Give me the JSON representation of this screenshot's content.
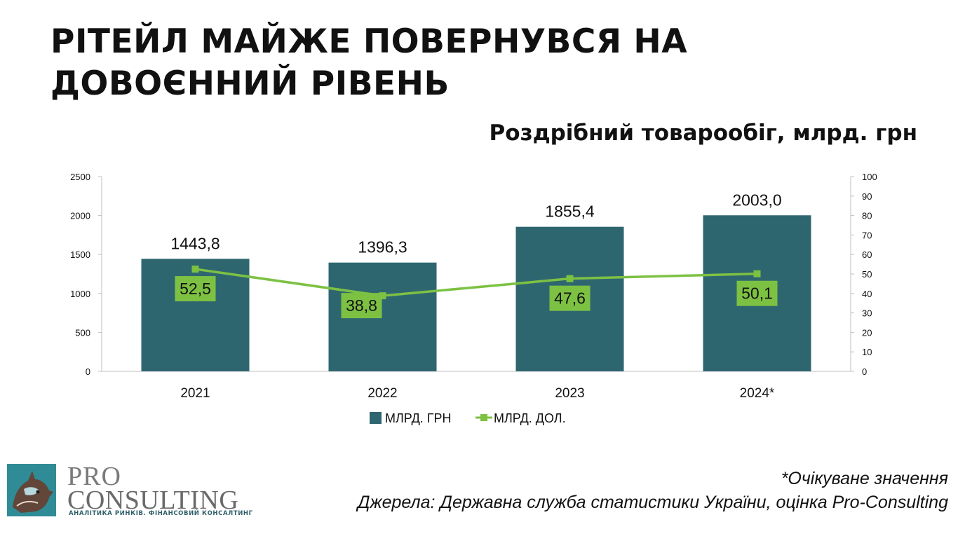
{
  "header": {
    "title_line1": "РІТЕЙЛ МАЙЖЕ ПОВЕРНУВСЯ НА",
    "title_line2": "ДОВОЄННИЙ РІВЕНЬ"
  },
  "chart_data": {
    "type": "bar",
    "title": "Роздрібний товарообіг, млрд. грн",
    "categories": [
      "2021",
      "2022",
      "2023",
      "2024*"
    ],
    "series": [
      {
        "name": "МЛРД. ГРН",
        "type": "bar",
        "axis": "left",
        "values": [
          1443.8,
          1396.3,
          1855.4,
          2003.0
        ],
        "labels": [
          "1443,8",
          "1396,3",
          "1855,4",
          "2003,0"
        ],
        "color": "#2e6670"
      },
      {
        "name": "МЛРД. ДОЛ.",
        "type": "line",
        "axis": "right",
        "values": [
          52.5,
          38.8,
          47.6,
          50.1
        ],
        "labels": [
          "52,5",
          "38,8",
          "47,6",
          "50,1"
        ],
        "color": "#7dc143"
      }
    ],
    "y_left": {
      "range": [
        0,
        2500
      ],
      "ticks": [
        0,
        500,
        1000,
        1500,
        2000,
        2500
      ]
    },
    "y_right": {
      "range": [
        0,
        100
      ],
      "ticks": [
        0,
        10,
        20,
        30,
        40,
        50,
        60,
        70,
        80,
        90,
        100
      ]
    },
    "legend": "bottom",
    "grid": false
  },
  "footer": {
    "note": "*Очікуване значення",
    "source": "Джерела: Державна служба статистики України, оцінка Pro-Consulting"
  },
  "logo": {
    "pro": "PRO",
    "consulting": "CONSULTING",
    "tagline": "АНАЛІТИКА РИНКІВ. ФІНАНСОВИЙ КОНСАЛТИНГ"
  }
}
